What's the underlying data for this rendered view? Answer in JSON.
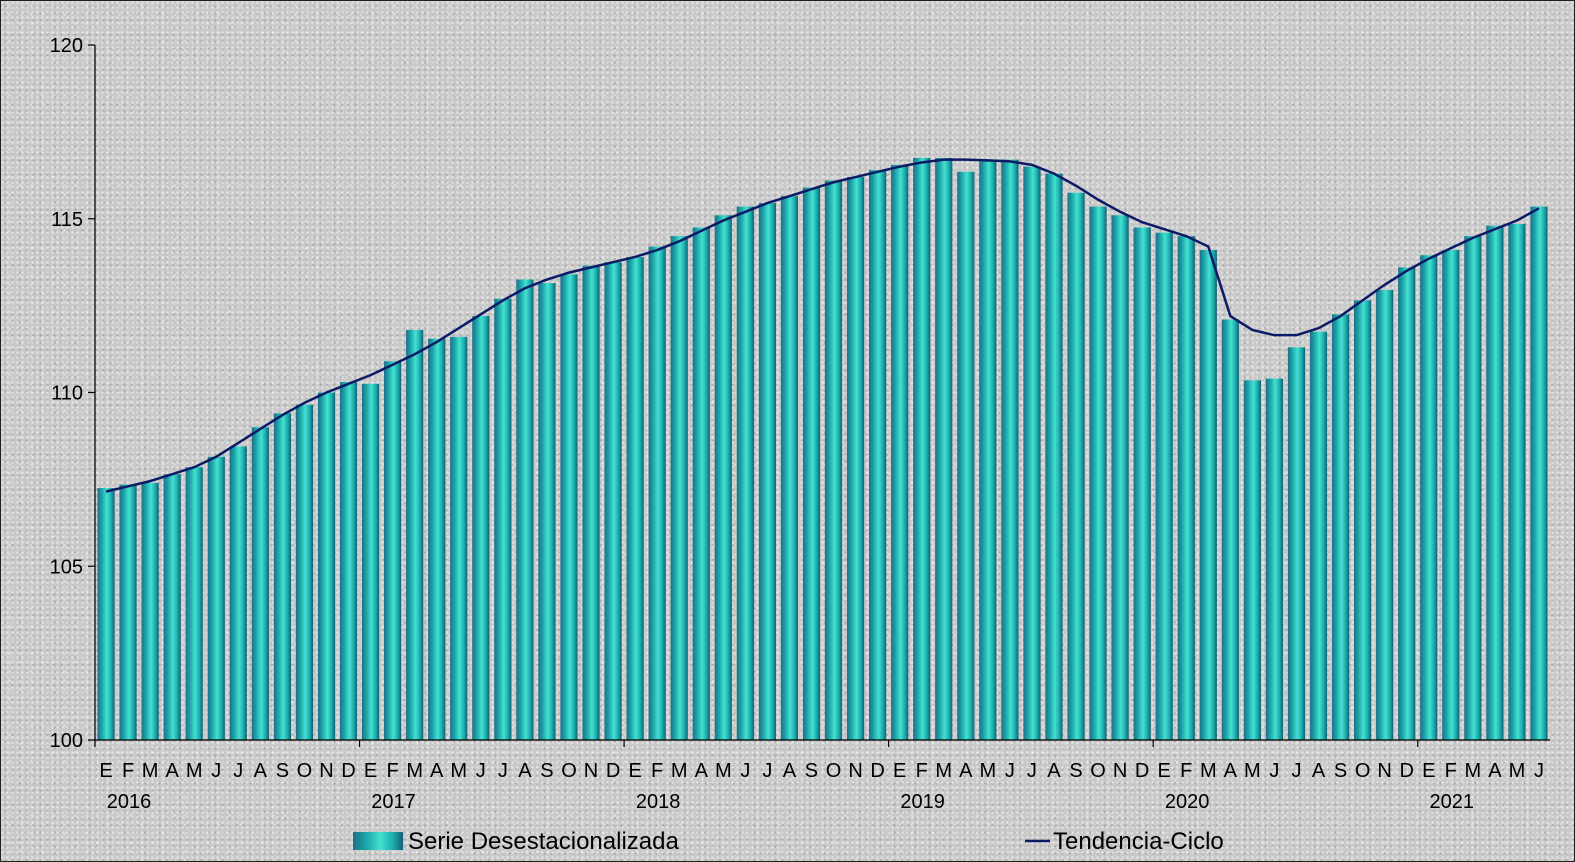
{
  "chart_data": {
    "type": "bar",
    "ylim": [
      100,
      120
    ],
    "yticks": [
      "100",
      "105",
      "110",
      "115",
      "120"
    ],
    "month_labels": [
      "E",
      "F",
      "M",
      "A",
      "M",
      "J",
      "J",
      "A",
      "S",
      "O",
      "N",
      "D"
    ],
    "years": [
      "2016",
      "2017",
      "2018",
      "2019",
      "2020",
      "2021"
    ],
    "x": [
      "2016-01",
      "2016-02",
      "2016-03",
      "2016-04",
      "2016-05",
      "2016-06",
      "2016-07",
      "2016-08",
      "2016-09",
      "2016-10",
      "2016-11",
      "2016-12",
      "2017-01",
      "2017-02",
      "2017-03",
      "2017-04",
      "2017-05",
      "2017-06",
      "2017-07",
      "2017-08",
      "2017-09",
      "2017-10",
      "2017-11",
      "2017-12",
      "2018-01",
      "2018-02",
      "2018-03",
      "2018-04",
      "2018-05",
      "2018-06",
      "2018-07",
      "2018-08",
      "2018-09",
      "2018-10",
      "2018-11",
      "2018-12",
      "2019-01",
      "2019-02",
      "2019-03",
      "2019-04",
      "2019-05",
      "2019-06",
      "2019-07",
      "2019-08",
      "2019-09",
      "2019-10",
      "2019-11",
      "2019-12",
      "2020-01",
      "2020-02",
      "2020-03",
      "2020-04",
      "2020-05",
      "2020-06",
      "2020-07",
      "2020-08",
      "2020-09",
      "2020-10",
      "2020-11",
      "2020-12",
      "2021-01",
      "2021-02",
      "2021-03",
      "2021-04",
      "2021-05",
      "2021-06"
    ],
    "series": [
      {
        "name": "Serie Desestacionalizada",
        "type": "bar",
        "color": "#1aa9a6",
        "values": [
          107.25,
          107.35,
          107.4,
          107.65,
          107.85,
          108.15,
          108.45,
          109.0,
          109.4,
          109.65,
          110.0,
          110.3,
          110.25,
          110.9,
          111.8,
          111.55,
          111.6,
          112.2,
          112.7,
          113.25,
          113.15,
          113.4,
          113.65,
          113.75,
          113.9,
          114.2,
          114.5,
          114.75,
          115.1,
          115.35,
          115.45,
          115.65,
          115.9,
          116.1,
          116.2,
          116.4,
          116.55,
          116.75,
          116.75,
          116.35,
          116.65,
          116.7,
          116.5,
          116.3,
          115.75,
          115.35,
          115.1,
          114.75,
          114.6,
          114.5,
          114.1,
          112.1,
          110.35,
          110.4,
          111.3,
          111.75,
          112.25,
          112.65,
          112.95,
          113.6,
          113.95,
          114.1,
          114.5,
          114.8,
          114.85,
          115.35
        ]
      },
      {
        "name": "Tendencia-Ciclo",
        "type": "line",
        "color": "#0d1a66",
        "values": [
          107.15,
          107.3,
          107.45,
          107.65,
          107.85,
          108.15,
          108.55,
          108.95,
          109.35,
          109.7,
          110.0,
          110.25,
          110.5,
          110.8,
          111.1,
          111.45,
          111.85,
          112.25,
          112.65,
          113.0,
          113.25,
          113.45,
          113.6,
          113.75,
          113.9,
          114.1,
          114.35,
          114.65,
          114.95,
          115.2,
          115.45,
          115.65,
          115.85,
          116.05,
          116.2,
          116.35,
          116.5,
          116.62,
          116.7,
          116.7,
          116.68,
          116.65,
          116.55,
          116.3,
          115.95,
          115.55,
          115.2,
          114.9,
          114.7,
          114.5,
          114.2,
          112.2,
          111.8,
          111.65,
          111.65,
          111.85,
          112.2,
          112.65,
          113.1,
          113.5,
          113.85,
          114.15,
          114.45,
          114.7,
          114.95,
          115.3
        ]
      }
    ],
    "legend": {
      "position": "bottom"
    },
    "grid": false
  }
}
